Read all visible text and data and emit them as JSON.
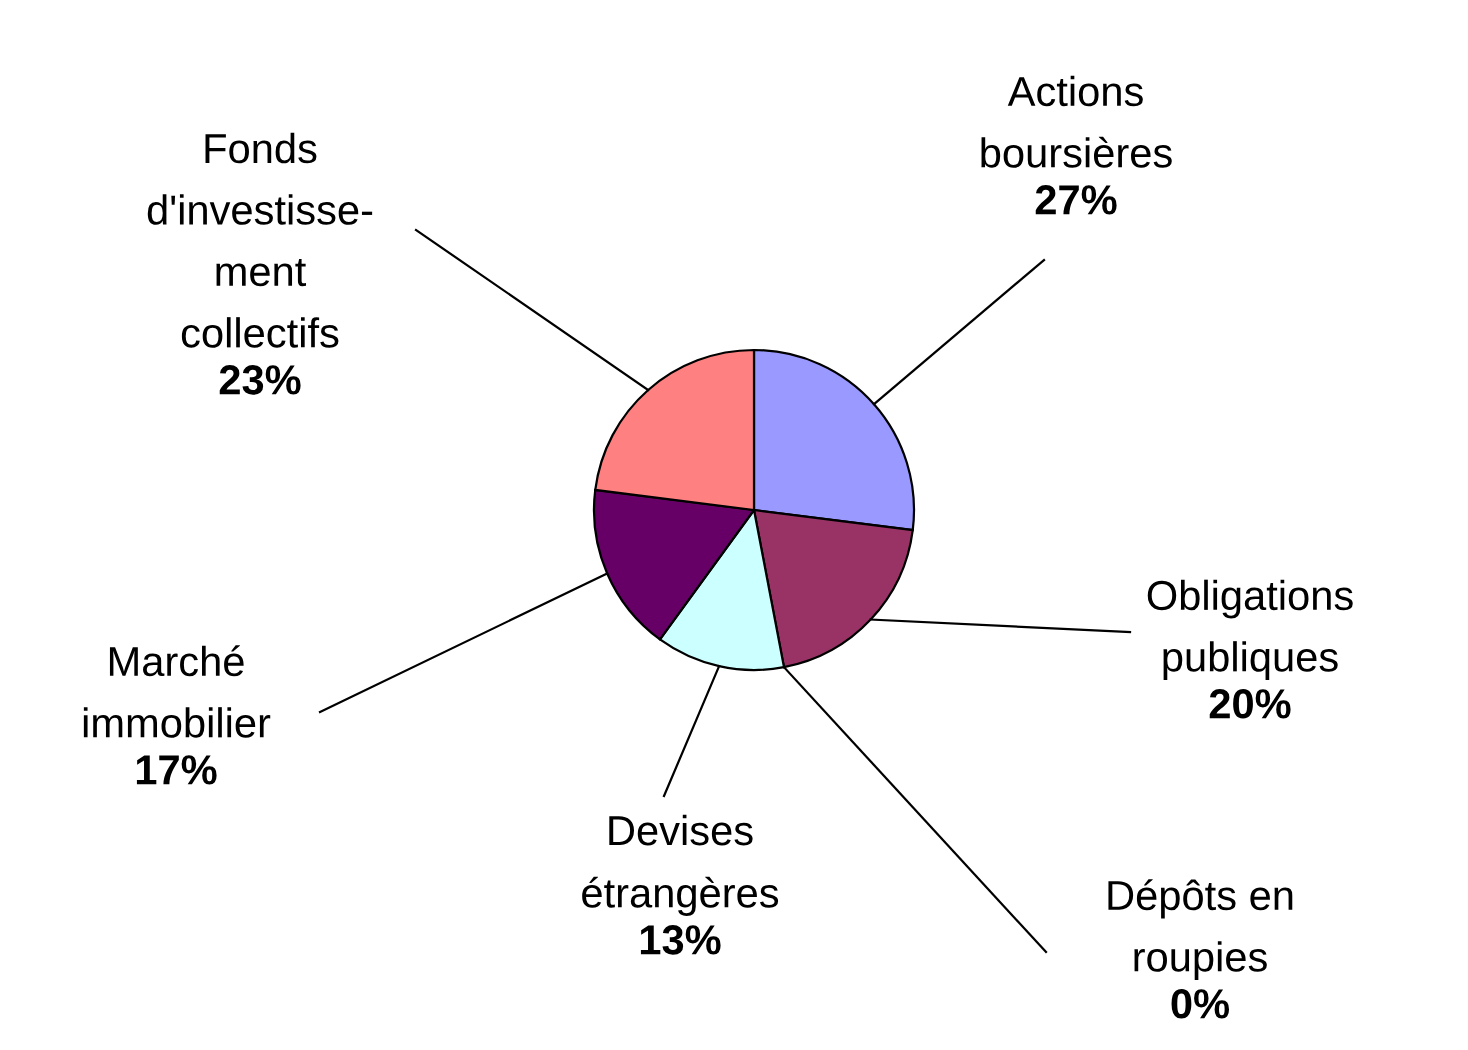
{
  "chart_data": {
    "type": "pie",
    "categories": [
      "Actions\nboursières",
      "Obligations\npubliques",
      "Dépôts en\nroupies",
      "Devises\nétrangères",
      "Marché\nimmobilier",
      "Fonds\nd'investisse-\nment\ncollectifs"
    ],
    "values": [
      27,
      20,
      0,
      13,
      17,
      23
    ],
    "value_labels": [
      "27%",
      "20%",
      "0%",
      "13%",
      "17%",
      "23%"
    ],
    "colors": [
      "#9999ff",
      "#993366",
      "#ffffcc",
      "#ccffff",
      "#660066",
      "#ff8080"
    ],
    "legend": false
  }
}
